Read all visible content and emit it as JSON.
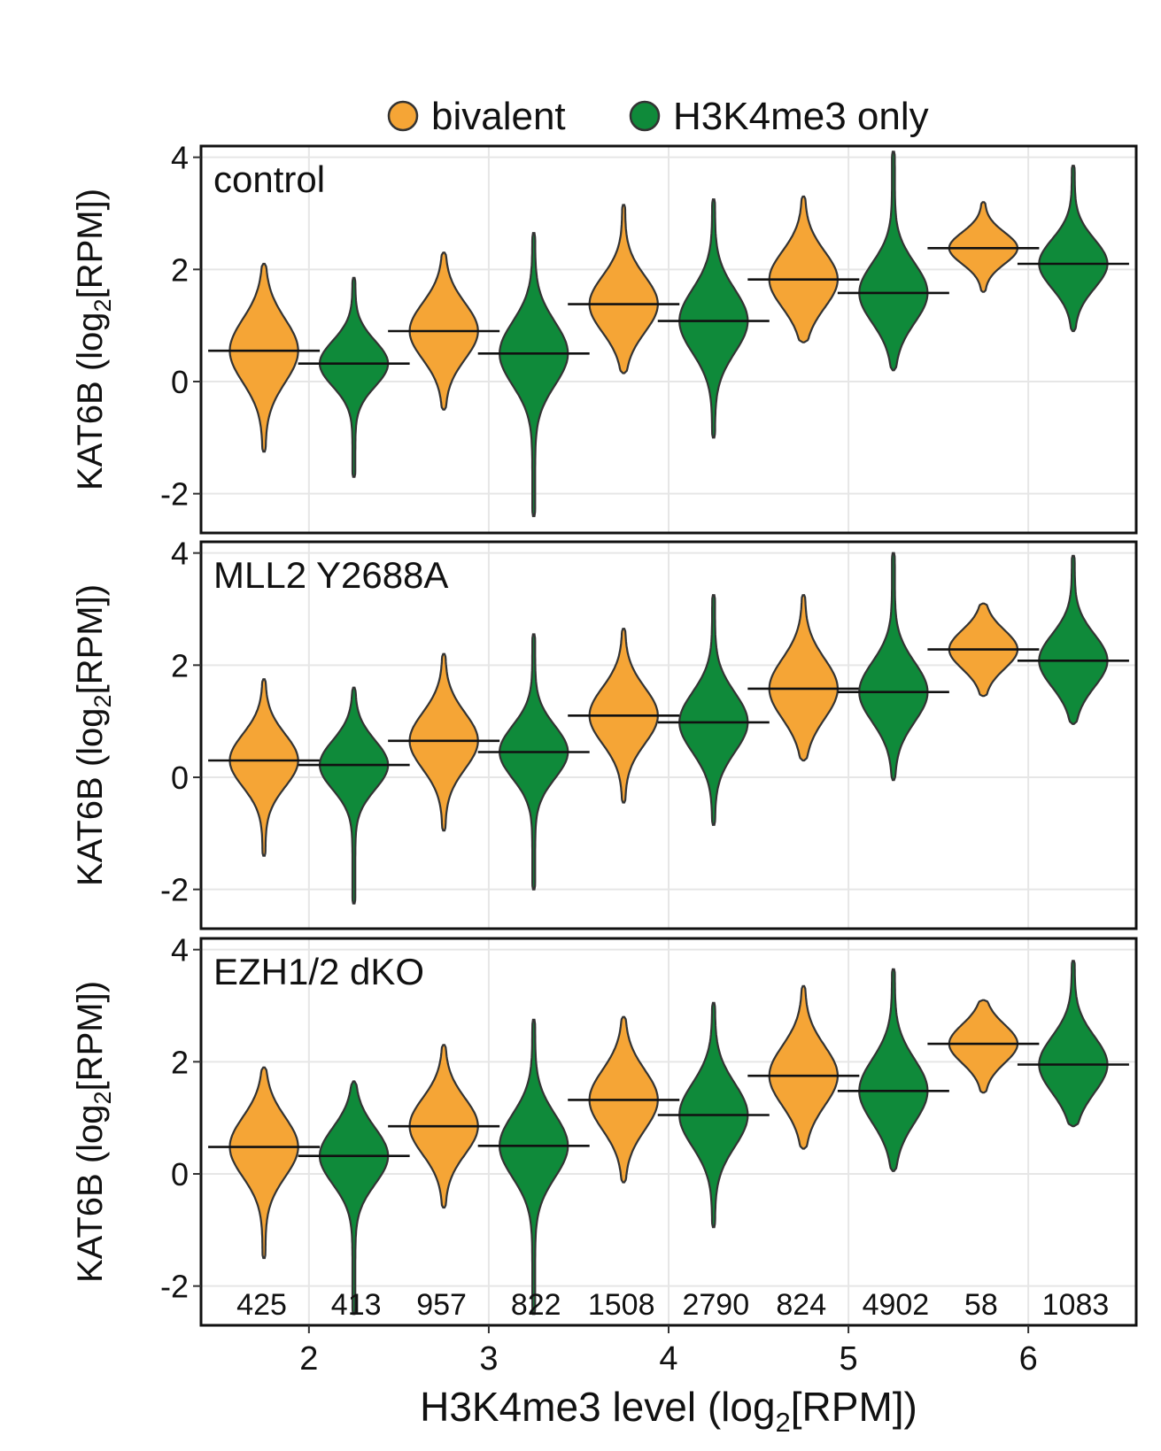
{
  "chart_data": {
    "type": "violin",
    "xlabel": {
      "pre": "H3K4me3 level (log",
      "sub": "2",
      "post": "[RPM])"
    },
    "ylabel": {
      "pre": "KAT6B (log",
      "sub": "2",
      "post": "[RPM])"
    },
    "x_ticks": [
      2,
      3,
      4,
      5,
      6
    ],
    "x_tick_labels": [
      "2",
      "3",
      "4",
      "5",
      "6"
    ],
    "xlim": [
      1.4,
      6.6
    ],
    "y_ticks": [
      -2,
      0,
      2,
      4
    ],
    "y_tick_labels": [
      "-2",
      "0",
      "2",
      "4"
    ],
    "ylim": [
      -2.7,
      4.2
    ],
    "grid": true,
    "legend_position": "top",
    "legend": [
      {
        "label": "bivalent",
        "color": "#F5A536"
      },
      {
        "label": "H3K4me3 only",
        "color": "#0F8A3A"
      }
    ],
    "series_colors": [
      "#F5A536",
      "#0F8A3A"
    ],
    "panels": [
      {
        "title": "control",
        "groups": [
          {
            "x": 2,
            "bivalent": {
              "median": 0.55,
              "min": -1.25,
              "max": 2.1,
              "q1": 0.1,
              "q3": 1.0
            },
            "h3k4me3_only": {
              "median": 0.32,
              "min": -1.7,
              "max": 1.85,
              "q1": -0.05,
              "q3": 0.6
            }
          },
          {
            "x": 3,
            "bivalent": {
              "median": 0.9,
              "min": -0.5,
              "max": 2.3,
              "q1": 0.5,
              "q3": 1.3
            },
            "h3k4me3_only": {
              "median": 0.5,
              "min": -2.4,
              "max": 2.65,
              "q1": 0.0,
              "q3": 0.9
            }
          },
          {
            "x": 4,
            "bivalent": {
              "median": 1.38,
              "min": 0.15,
              "max": 3.15,
              "q1": 1.0,
              "q3": 1.8
            },
            "h3k4me3_only": {
              "median": 1.08,
              "min": -1.0,
              "max": 3.25,
              "q1": 0.6,
              "q3": 1.5
            }
          },
          {
            "x": 5,
            "bivalent": {
              "median": 1.82,
              "min": 0.7,
              "max": 3.3,
              "q1": 1.45,
              "q3": 2.25
            },
            "h3k4me3_only": {
              "median": 1.58,
              "min": 0.2,
              "max": 4.1,
              "q1": 1.2,
              "q3": 2.05
            }
          },
          {
            "x": 6,
            "bivalent": {
              "median": 2.38,
              "min": 1.6,
              "max": 3.2,
              "q1": 2.15,
              "q3": 2.6
            },
            "h3k4me3_only": {
              "median": 2.1,
              "min": 0.9,
              "max": 3.85,
              "q1": 1.75,
              "q3": 2.45
            }
          }
        ]
      },
      {
        "title": "MLL2 Y2688A",
        "groups": [
          {
            "x": 2,
            "bivalent": {
              "median": 0.3,
              "min": -1.4,
              "max": 1.75,
              "q1": -0.05,
              "q3": 0.7
            },
            "h3k4me3_only": {
              "median": 0.22,
              "min": -2.25,
              "max": 1.6,
              "q1": -0.15,
              "q3": 0.55
            }
          },
          {
            "x": 3,
            "bivalent": {
              "median": 0.65,
              "min": -0.95,
              "max": 2.2,
              "q1": 0.25,
              "q3": 1.05
            },
            "h3k4me3_only": {
              "median": 0.45,
              "min": -2.0,
              "max": 2.55,
              "q1": 0.05,
              "q3": 0.8
            }
          },
          {
            "x": 4,
            "bivalent": {
              "median": 1.1,
              "min": -0.45,
              "max": 2.65,
              "q1": 0.7,
              "q3": 1.5
            },
            "h3k4me3_only": {
              "median": 0.98,
              "min": -0.85,
              "max": 3.25,
              "q1": 0.55,
              "q3": 1.4
            }
          },
          {
            "x": 5,
            "bivalent": {
              "median": 1.58,
              "min": 0.3,
              "max": 3.25,
              "q1": 1.15,
              "q3": 2.0
            },
            "h3k4me3_only": {
              "median": 1.52,
              "min": -0.05,
              "max": 4.0,
              "q1": 1.1,
              "q3": 1.95
            }
          },
          {
            "x": 6,
            "bivalent": {
              "median": 2.28,
              "min": 1.45,
              "max": 3.1,
              "q1": 2.0,
              "q3": 2.55
            },
            "h3k4me3_only": {
              "median": 2.08,
              "min": 0.95,
              "max": 3.95,
              "q1": 1.7,
              "q3": 2.45
            }
          }
        ]
      },
      {
        "title": "EZH1/2 dKO",
        "groups": [
          {
            "x": 2,
            "bivalent": {
              "median": 0.48,
              "min": -1.5,
              "max": 1.9,
              "q1": 0.05,
              "q3": 0.9
            },
            "h3k4me3_only": {
              "median": 0.32,
              "min": -2.5,
              "max": 1.65,
              "q1": -0.1,
              "q3": 0.7
            }
          },
          {
            "x": 3,
            "bivalent": {
              "median": 0.85,
              "min": -0.6,
              "max": 2.3,
              "q1": 0.45,
              "q3": 1.25
            },
            "h3k4me3_only": {
              "median": 0.5,
              "min": -2.5,
              "max": 2.75,
              "q1": 0.05,
              "q3": 0.95
            }
          },
          {
            "x": 4,
            "bivalent": {
              "median": 1.32,
              "min": -0.15,
              "max": 2.8,
              "q1": 0.9,
              "q3": 1.75
            },
            "h3k4me3_only": {
              "median": 1.05,
              "min": -0.95,
              "max": 3.05,
              "q1": 0.6,
              "q3": 1.5
            }
          },
          {
            "x": 5,
            "bivalent": {
              "median": 1.75,
              "min": 0.45,
              "max": 3.35,
              "q1": 1.35,
              "q3": 2.2
            },
            "h3k4me3_only": {
              "median": 1.48,
              "min": 0.05,
              "max": 3.65,
              "q1": 1.05,
              "q3": 1.95
            }
          },
          {
            "x": 6,
            "bivalent": {
              "median": 2.32,
              "min": 1.45,
              "max": 3.1,
              "q1": 2.05,
              "q3": 2.6
            },
            "h3k4me3_only": {
              "median": 1.95,
              "min": 0.85,
              "max": 3.8,
              "q1": 1.55,
              "q3": 2.35
            }
          }
        ]
      }
    ],
    "counts": [
      {
        "x": 2,
        "bivalent": "425",
        "h3k4me3_only": "413"
      },
      {
        "x": 3,
        "bivalent": "957",
        "h3k4me3_only": "822"
      },
      {
        "x": 4,
        "bivalent": "1508",
        "h3k4me3_only": "2790"
      },
      {
        "x": 5,
        "bivalent": "824",
        "h3k4me3_only": "4902"
      },
      {
        "x": 6,
        "bivalent": "58",
        "h3k4me3_only": "1083"
      }
    ]
  }
}
